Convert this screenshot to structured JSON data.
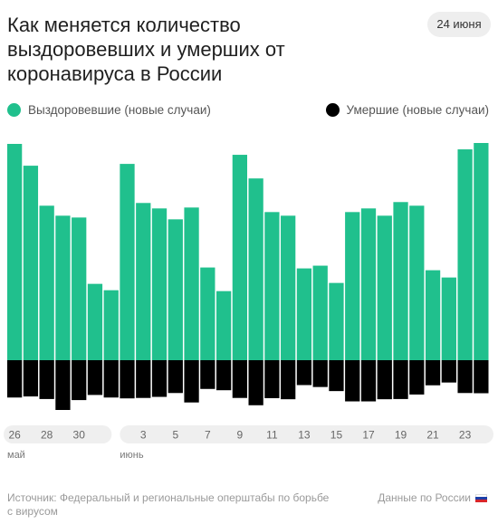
{
  "title": "Как меняется количество выздоровевших и умерших от коронавируса в России",
  "date_badge": "24 июня",
  "legend": {
    "recovered": {
      "label": "Выздоровевшие (новые случаи)",
      "color": "#20c08d"
    },
    "deaths": {
      "label": "Умершие (новые случаи)",
      "color": "#000000"
    }
  },
  "source": "Источник: Федеральный и региональные оперштабы по борьбе с вирусом",
  "source_right": "Данные по России",
  "flag_icon": "russia-flag-icon",
  "chart_data": {
    "type": "bar",
    "title": "Как меняется количество выздоровевших и умерших от коронавируса в России",
    "x": [
      "26 мая",
      "27 мая",
      "28 мая",
      "29 мая",
      "30 мая",
      "31 мая",
      "1 июня",
      "2 июня",
      "3 июня",
      "4 июня",
      "5 июня",
      "6 июня",
      "7 июня",
      "8 июня",
      "9 июня",
      "10 июня",
      "11 июня",
      "12 июня",
      "13 июня",
      "14 июня",
      "15 июня",
      "16 июня",
      "17 июня",
      "18 июня",
      "19 июня",
      "20 июня",
      "21 июня",
      "22 июня",
      "23 июня",
      "24 июня"
    ],
    "tick_labels": [
      "26",
      "28",
      "30",
      "3",
      "5",
      "7",
      "9",
      "11",
      "13",
      "15",
      "17",
      "19",
      "21",
      "23"
    ],
    "tick_indices": [
      0,
      2,
      4,
      8,
      10,
      12,
      14,
      16,
      18,
      20,
      22,
      24,
      26,
      28
    ],
    "month_labels": [
      {
        "label": "май",
        "index": 0
      },
      {
        "label": "июнь",
        "index": 7
      }
    ],
    "series": [
      {
        "name": "Выздоровевшие (новые случаи)",
        "color": "#20c08d",
        "values": [
          11900,
          10700,
          8500,
          7950,
          7850,
          4200,
          3850,
          10800,
          8650,
          8350,
          7750,
          8400,
          5100,
          3800,
          11300,
          10000,
          8150,
          7950,
          5050,
          5200,
          4250,
          8150,
          8350,
          7950,
          8700,
          8500,
          4950,
          4550,
          11600,
          11950
        ]
      },
      {
        "name": "Умершие (новые случаи)",
        "color": "#000000",
        "values": [
          174,
          169,
          181,
          232,
          186,
          162,
          174,
          178,
          176,
          171,
          153,
          197,
          134,
          140,
          176,
          210,
          177,
          182,
          116,
          125,
          144,
          192,
          192,
          182,
          181,
          160,
          117,
          104,
          153,
          154
        ]
      }
    ]
  }
}
